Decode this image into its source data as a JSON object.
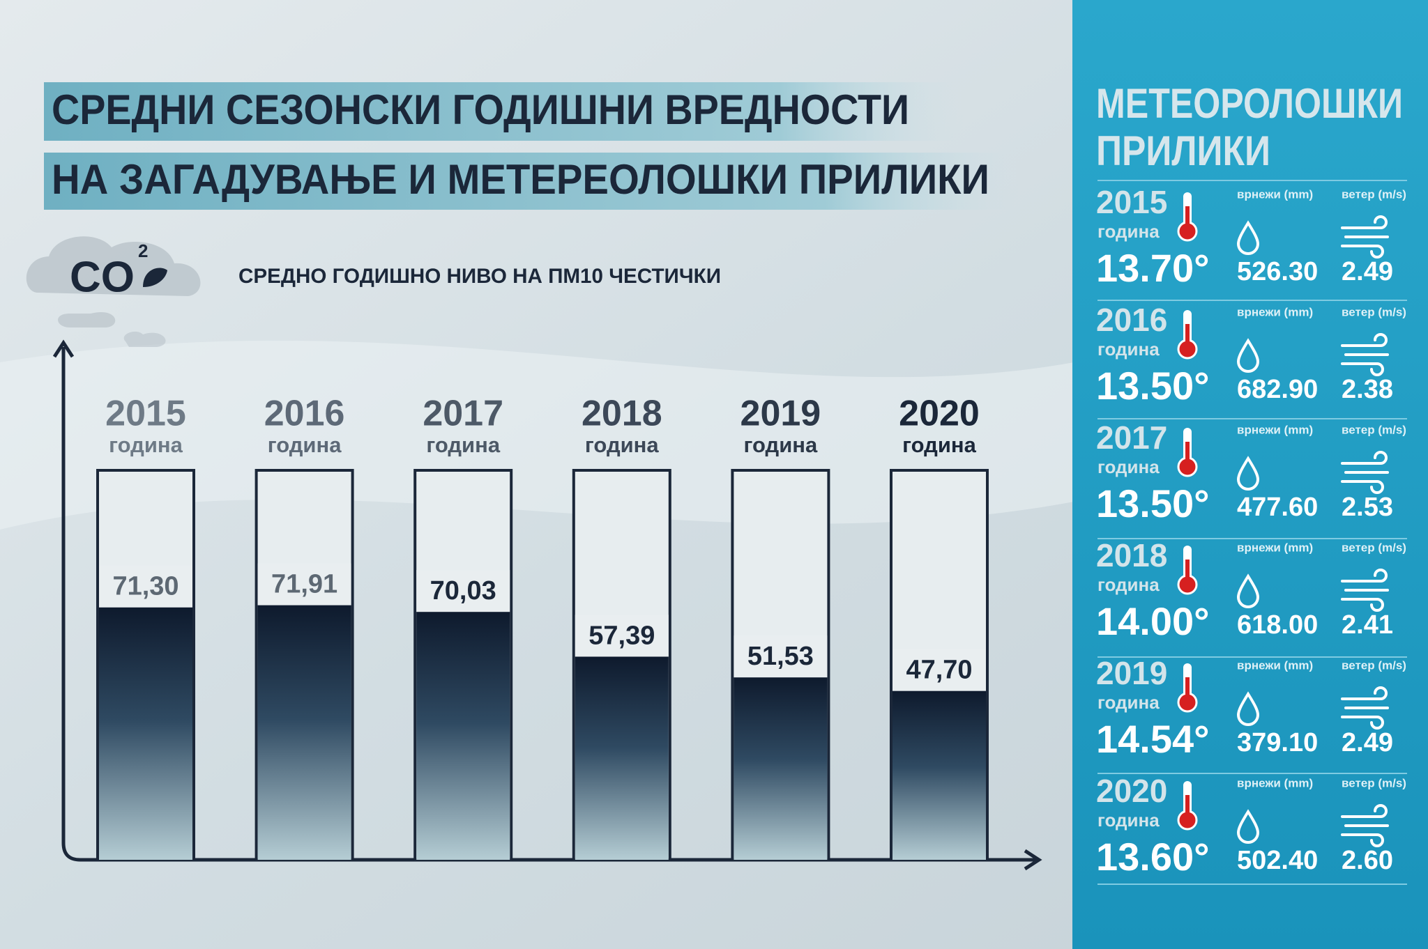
{
  "chart_data": {
    "type": "bar",
    "title": [
      "СРЕДНИ СЕЗОНСКИ ГОДИШНИ ВРЕДНОСТИ",
      "НА ЗАГАДУВАЊЕ И МЕТЕРЕОЛОШКИ ПРИЛИКИ"
    ],
    "subtitle": "СРЕДНО ГОДИШНО НИВО НА ПМ10 ЧЕСТИЧКИ",
    "badge": {
      "main": "CO",
      "sup": "2"
    },
    "categories": [
      "2015",
      "2016",
      "2017",
      "2018",
      "2019",
      "2020"
    ],
    "category_sublabel": "година",
    "values": [
      71.3,
      71.91,
      70.03,
      57.39,
      51.53,
      47.7
    ],
    "value_labels": [
      "71,30",
      "71,91",
      "70,03",
      "57,39",
      "51,53",
      "47,70"
    ],
    "color": "#0f1c30",
    "ylim": [
      0,
      110
    ]
  },
  "meteo": {
    "title": [
      "МЕТЕОРОЛОШКИ",
      "ПРИЛИКИ"
    ],
    "year_label": "година",
    "rain_label": "врнежи (mm)",
    "wind_label": "ветер (m/s)",
    "rows": [
      {
        "year": "2015",
        "temp": "13.70°",
        "rain": "526.30",
        "wind": "2.49"
      },
      {
        "year": "2016",
        "temp": "13.50°",
        "rain": "682.90",
        "wind": "2.38"
      },
      {
        "year": "2017",
        "temp": "13.50°",
        "rain": "477.60",
        "wind": "2.53"
      },
      {
        "year": "2018",
        "temp": "14.00°",
        "rain": "618.00",
        "wind": "2.41"
      },
      {
        "year": "2019",
        "temp": "14.54°",
        "rain": "379.10",
        "wind": "2.49"
      },
      {
        "year": "2020",
        "temp": "13.60°",
        "rain": "502.40",
        "wind": "2.60"
      }
    ]
  }
}
